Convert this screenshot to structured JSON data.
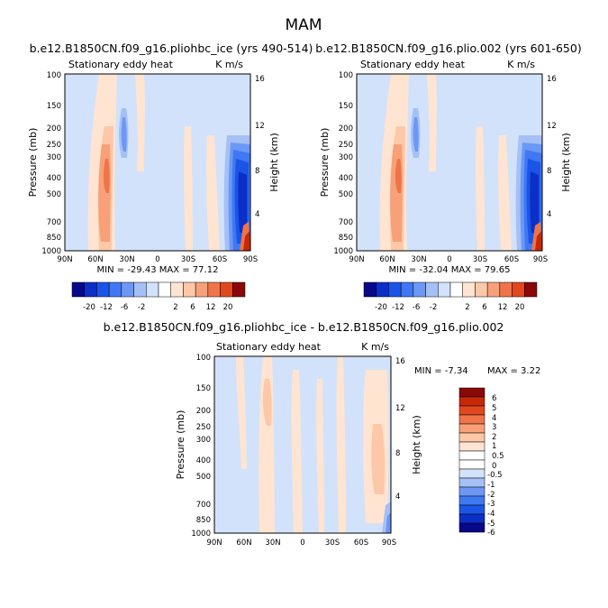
{
  "title": "MAM",
  "palette": [
    "#08088a",
    "#0c2fc8",
    "#1a55e8",
    "#3f78f2",
    "#6c98f5",
    "#a5c0f5",
    "#d2e2fa",
    "#ffffff",
    "#ffe4d2",
    "#fdc8a8",
    "#f8a078",
    "#f07448",
    "#e04820",
    "#c82808",
    "#8a0808"
  ],
  "chart_data": [
    {
      "type": "heatmap",
      "panel_title": "b.e12.B1850CN.f09_g16.pliohbc_ice (yrs 490-514)",
      "subtitle_left": "Stationary eddy heat",
      "subtitle_right": "K m/s",
      "xlabel": "",
      "ylabel": "Pressure (mb)",
      "ylabel_right": "Height (km)",
      "x_ticks": [
        "90N",
        "60N",
        "30N",
        "0",
        "30S",
        "60S",
        "90S"
      ],
      "y_ticks": [
        "100",
        "150",
        "200",
        "250",
        "300",
        "400",
        "500",
        "700",
        "850",
        "1000"
      ],
      "y_ticks_right": [
        "16",
        "12",
        "8",
        "4"
      ],
      "stats": "MIN = -29.43   MAX =  77.12",
      "contour_levels": [
        "-20",
        "-12",
        "-6",
        "-2",
        "2",
        "6",
        "12",
        "20"
      ],
      "min": -29.43,
      "max": 77.12
    },
    {
      "type": "heatmap",
      "panel_title": "b.e12.B1850CN.f09_g16.plio.002 (yrs 601-650)",
      "subtitle_left": "Stationary eddy heat",
      "subtitle_right": "K m/s",
      "xlabel": "",
      "ylabel": "Pressure (mb)",
      "ylabel_right": "Height (km)",
      "x_ticks": [
        "90N",
        "60N",
        "30N",
        "0",
        "30S",
        "60S",
        "90S"
      ],
      "y_ticks": [
        "100",
        "150",
        "200",
        "250",
        "300",
        "400",
        "500",
        "700",
        "850",
        "1000"
      ],
      "y_ticks_right": [
        "16",
        "12",
        "8",
        "4"
      ],
      "stats": "MIN = -32.04   MAX =  79.65",
      "contour_levels": [
        "-20",
        "-12",
        "-6",
        "-2",
        "2",
        "6",
        "12",
        "20"
      ],
      "min": -32.04,
      "max": 79.65
    },
    {
      "type": "heatmap",
      "panel_title": "b.e12.B1850CN.f09_g16.pliohbc_ice - b.e12.B1850CN.f09_g16.plio.002",
      "subtitle_left": "Stationary eddy heat",
      "subtitle_right": "K m/s",
      "xlabel": "",
      "ylabel": "Pressure (mb)",
      "ylabel_right": "Height (km)",
      "x_ticks": [
        "90N",
        "60N",
        "30N",
        "0",
        "30S",
        "60S",
        "90S"
      ],
      "y_ticks": [
        "100",
        "150",
        "200",
        "250",
        "300",
        "400",
        "500",
        "700",
        "850",
        "1000"
      ],
      "y_ticks_right": [
        "16",
        "12",
        "8",
        "4"
      ],
      "stats_min": "MIN =   -7.34",
      "stats_max": "MAX =    3.22",
      "contour_levels": [
        "6",
        "5",
        "4",
        "3",
        "2",
        "1",
        "0.5",
        "0",
        "-0.5",
        "-1",
        "-2",
        "-3",
        "-4",
        "-5",
        "-6"
      ],
      "min": -7.34,
      "max": 3.22
    }
  ],
  "colorbar_labels": [
    "-20",
    "-12",
    "-6",
    "-2",
    "2",
    "6",
    "12",
    "20"
  ]
}
